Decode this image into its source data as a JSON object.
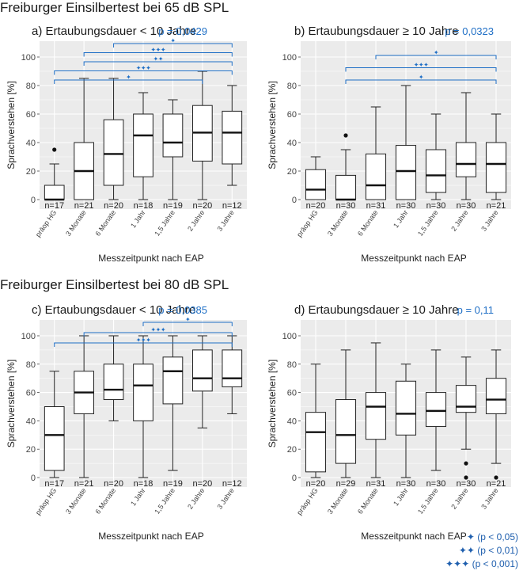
{
  "section_titles": {
    "top": "Freiburger Einsilbertest bei 65 dB SPL",
    "bottom": "Freiburger Einsilbertest bei 80 dB SPL"
  },
  "colors": {
    "accent": "#1f6fc6",
    "panel_bg": "#ebebeb",
    "grid": "#ffffff"
  },
  "legend": [
    {
      "symbol": "✦",
      "text": "(p < 0,05)"
    },
    {
      "symbol": "✦✦",
      "text": "(p < 0,01)"
    },
    {
      "symbol": "✦✦✦",
      "text": "(p < 0,001)"
    }
  ],
  "chart_data": [
    {
      "type": "box",
      "panel": "a",
      "title": "a) Ertaubungsdauer < 10 Jahre",
      "pvalue": "p = 0,0429",
      "xlabel": "Messzeitpunkt nach EAP",
      "ylabel": "Sprachverstehen [%]",
      "ylim": [
        0,
        100
      ],
      "yticks": [
        0,
        20,
        40,
        60,
        80,
        100
      ],
      "categories": [
        "präop HG",
        "3 Monate",
        "6 Monate",
        "1 Jahr",
        "1,5 Jahre",
        "2 Jahre",
        "3 Jahre"
      ],
      "n": [
        "n=17",
        "n=21",
        "n=20",
        "n=18",
        "n=19",
        "n=20",
        "n=12"
      ],
      "boxes": [
        {
          "min": 0,
          "q1": 0,
          "median": 0,
          "q3": 10,
          "max": 25,
          "outliers": [
            35
          ]
        },
        {
          "min": 0,
          "q1": 0,
          "median": 20,
          "q3": 40,
          "max": 85,
          "outliers": []
        },
        {
          "min": 0,
          "q1": 10,
          "median": 32,
          "q3": 56,
          "max": 85,
          "outliers": []
        },
        {
          "min": 0,
          "q1": 16,
          "median": 45,
          "q3": 60,
          "max": 75,
          "outliers": []
        },
        {
          "min": 0,
          "q1": 30,
          "median": 40,
          "q3": 60,
          "max": 70,
          "outliers": []
        },
        {
          "min": 0,
          "q1": 27,
          "median": 47,
          "q3": 66,
          "max": 90,
          "outliers": []
        },
        {
          "min": 10,
          "q1": 25,
          "median": 47,
          "q3": 62,
          "max": 80,
          "outliers": []
        }
      ],
      "comparisons": [
        {
          "from": 0,
          "to": 5,
          "sig": "✦"
        },
        {
          "from": 0,
          "to": 6,
          "sig": "✦✦✦"
        },
        {
          "from": 1,
          "to": 6,
          "sig": "✦✦"
        },
        {
          "from": 1,
          "to": 6,
          "sig": "✦✦✦"
        },
        {
          "from": 2,
          "to": 6,
          "sig": "✦"
        }
      ]
    },
    {
      "type": "box",
      "panel": "b",
      "title": "b) Ertaubungsdauer ≥ 10 Jahre",
      "pvalue": "p = 0,0323",
      "xlabel": "Messzeitpunkt nach EAP",
      "ylabel": "Sprachverstehen [%]",
      "ylim": [
        0,
        100
      ],
      "yticks": [
        0,
        20,
        40,
        60,
        80,
        100
      ],
      "categories": [
        "präop HG",
        "3 Monate",
        "6 Monate",
        "1 Jahr",
        "1,5 Jahre",
        "2 Jahre",
        "3 Jahre"
      ],
      "n": [
        "n=20",
        "n=30",
        "n=31",
        "n=30",
        "n=30",
        "n=30",
        "n=21"
      ],
      "boxes": [
        {
          "min": 0,
          "q1": 0,
          "median": 7,
          "q3": 21,
          "max": 30,
          "outliers": []
        },
        {
          "min": 0,
          "q1": 0,
          "median": 0,
          "q3": 17,
          "max": 35,
          "outliers": [
            45
          ]
        },
        {
          "min": 0,
          "q1": 0,
          "median": 10,
          "q3": 32,
          "max": 65,
          "outliers": []
        },
        {
          "min": 0,
          "q1": 0,
          "median": 20,
          "q3": 38,
          "max": 80,
          "outliers": []
        },
        {
          "min": 0,
          "q1": 5,
          "median": 17,
          "q3": 35,
          "max": 60,
          "outliers": []
        },
        {
          "min": 0,
          "q1": 16,
          "median": 25,
          "q3": 40,
          "max": 75,
          "outliers": []
        },
        {
          "min": 0,
          "q1": 5,
          "median": 25,
          "q3": 40,
          "max": 60,
          "outliers": []
        }
      ],
      "comparisons": [
        {
          "from": 1,
          "to": 6,
          "sig": "✦"
        },
        {
          "from": 1,
          "to": 6,
          "sig": "✦✦✦"
        },
        {
          "from": 2,
          "to": 6,
          "sig": "✦"
        }
      ]
    },
    {
      "type": "box",
      "panel": "c",
      "title": "c) Ertaubungsdauer < 10 Jahre",
      "pvalue": "p = 0,0385",
      "xlabel": "Messzeitpunkt nach EAP",
      "ylabel": "Sprachverstehen [%]",
      "ylim": [
        0,
        100
      ],
      "yticks": [
        0,
        20,
        40,
        60,
        80,
        100
      ],
      "categories": [
        "präop HG",
        "3 Monate",
        "6 Monate",
        "1 Jahr",
        "1,5 Jahre",
        "2 Jahre",
        "3 Jahre"
      ],
      "n": [
        "n=17",
        "n=21",
        "n=20",
        "n=18",
        "n=19",
        "n=20",
        "n=12"
      ],
      "boxes": [
        {
          "min": 0,
          "q1": 5,
          "median": 30,
          "q3": 50,
          "max": 75,
          "outliers": []
        },
        {
          "min": 0,
          "q1": 45,
          "median": 60,
          "q3": 75,
          "max": 100,
          "outliers": []
        },
        {
          "min": 40,
          "q1": 55,
          "median": 62,
          "q3": 80,
          "max": 100,
          "outliers": []
        },
        {
          "min": 0,
          "q1": 40,
          "median": 65,
          "q3": 80,
          "max": 100,
          "outliers": []
        },
        {
          "min": 5,
          "q1": 52,
          "median": 75,
          "q3": 85,
          "max": 100,
          "outliers": []
        },
        {
          "min": 35,
          "q1": 61,
          "median": 70,
          "q3": 90,
          "max": 100,
          "outliers": []
        },
        {
          "min": 45,
          "q1": 64,
          "median": 70,
          "q3": 90,
          "max": 100,
          "outliers": []
        }
      ],
      "comparisons": [
        {
          "from": 0,
          "to": 6,
          "sig": "✦✦✦"
        },
        {
          "from": 1,
          "to": 6,
          "sig": "✦✦✦"
        },
        {
          "from": 3,
          "to": 6,
          "sig": "✦"
        }
      ]
    },
    {
      "type": "box",
      "panel": "d",
      "title": "d) Ertaubungsdauer ≥ 10 Jahre",
      "pvalue": "p = 0,11",
      "xlabel": "Messzeitpunkt nach EAP",
      "ylabel": "Sprachverstehen [%]",
      "ylim": [
        0,
        100
      ],
      "yticks": [
        0,
        20,
        40,
        60,
        80,
        100
      ],
      "categories": [
        "präop HG",
        "3 Monate",
        "6 Monate",
        "1 Jahr",
        "1,5 Jahre",
        "2 Jahre",
        "3 Jahre"
      ],
      "n": [
        "n=20",
        "n=29",
        "n=31",
        "n=30",
        "n=30",
        "n=30",
        "n=21"
      ],
      "boxes": [
        {
          "min": 0,
          "q1": 4,
          "median": 32,
          "q3": 46,
          "max": 80,
          "outliers": []
        },
        {
          "min": 0,
          "q1": 10,
          "median": 30,
          "q3": 55,
          "max": 90,
          "outliers": []
        },
        {
          "min": 0,
          "q1": 27,
          "median": 50,
          "q3": 60,
          "max": 95,
          "outliers": []
        },
        {
          "min": 0,
          "q1": 30,
          "median": 45,
          "q3": 68,
          "max": 80,
          "outliers": []
        },
        {
          "min": 5,
          "q1": 36,
          "median": 47,
          "q3": 60,
          "max": 90,
          "outliers": []
        },
        {
          "min": 20,
          "q1": 46,
          "median": 50,
          "q3": 65,
          "max": 85,
          "outliers": [
            10,
            0
          ]
        },
        {
          "min": 10,
          "q1": 45,
          "median": 55,
          "q3": 70,
          "max": 90,
          "outliers": [
            0
          ]
        }
      ],
      "comparisons": []
    }
  ]
}
